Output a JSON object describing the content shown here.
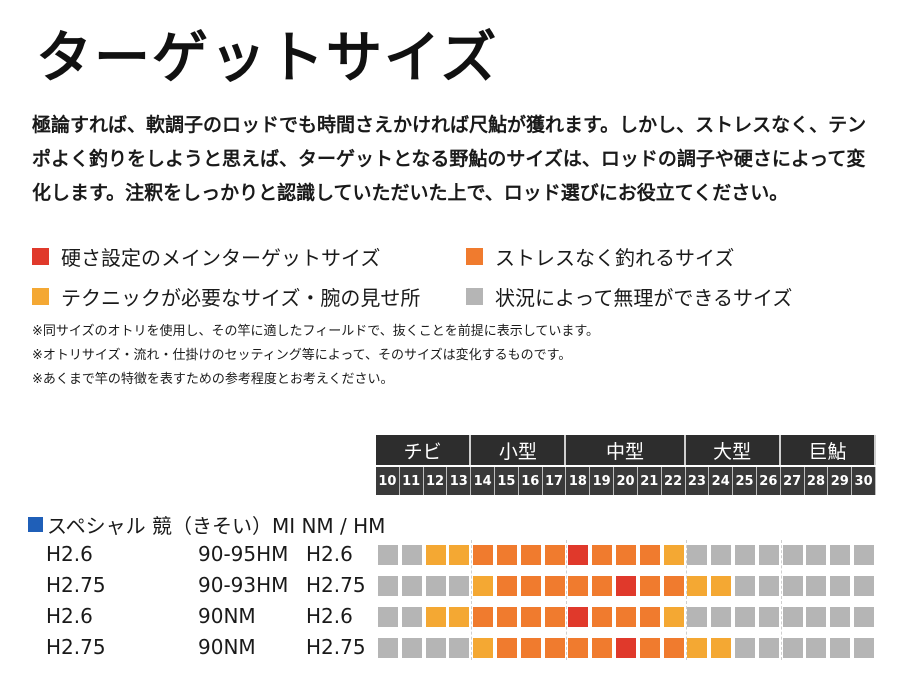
{
  "title": "ターゲットサイズ",
  "intro": [
    "極論すれば、軟調子のロッドでも時間さえかければ尺鮎が獲れます。しかし、ストレスなく、テン",
    "ポよく釣りをしようと思えば、ターゲットとなる野鮎のサイズは、ロッドの調子や硬さによって変",
    "化します。注釈をしっかりと認識していただいた上で、ロッド選びにお役立てください。"
  ],
  "legend": [
    {
      "label": "硬さ設定のメインターゲットサイズ",
      "color": "#e0392b",
      "level": 3
    },
    {
      "label": "ストレスなく釣れるサイズ",
      "color": "#f07b2e",
      "level": 2
    },
    {
      "label": "テクニックが必要なサイズ・腕の見せ所",
      "color": "#f4a833",
      "level": 1
    },
    {
      "label": "状況によって無理ができるサイズ",
      "color": "#b5b5b5",
      "level": 0
    }
  ],
  "notes": [
    "※同サイズのオトリを使用し、その竿に適したフィールドで、抜くことを前提に表示しています。",
    "※オトリサイズ・流れ・仕掛けのセッティング等によって、そのサイズは変化するものです。",
    "※あくまで竿の特徴を表すための参考程度とお考えください。"
  ],
  "chart_data": {
    "type": "heatmap",
    "size_bands": [
      {
        "label": "チビ",
        "sizes": [
          10,
          11,
          12,
          13
        ]
      },
      {
        "label": "小型",
        "sizes": [
          14,
          15,
          16,
          17
        ]
      },
      {
        "label": "中型",
        "sizes": [
          18,
          19,
          20,
          21,
          22
        ]
      },
      {
        "label": "大型",
        "sizes": [
          23,
          24,
          25,
          26
        ]
      },
      {
        "label": "巨鮎",
        "sizes": [
          27,
          28,
          29,
          30
        ]
      }
    ],
    "sizes": [
      10,
      11,
      12,
      13,
      14,
      15,
      16,
      17,
      18,
      19,
      20,
      21,
      22,
      23,
      24,
      25,
      26,
      27,
      28,
      29,
      30
    ],
    "series_title": "スペシャル 競（きそい）MI NM / HM",
    "rows": [
      {
        "name": "H2.6",
        "spec": "90-95HM",
        "name2": "H2.6",
        "levels": [
          0,
          0,
          1,
          1,
          2,
          2,
          2,
          2,
          3,
          2,
          2,
          2,
          1,
          0,
          0,
          0,
          0,
          0,
          0,
          0,
          0
        ]
      },
      {
        "name": "H2.75",
        "spec": "90-93HM",
        "name2": "H2.75",
        "levels": [
          0,
          0,
          0,
          0,
          1,
          2,
          2,
          2,
          2,
          2,
          3,
          2,
          2,
          1,
          1,
          0,
          0,
          0,
          0,
          0,
          0
        ]
      },
      {
        "name": "H2.6",
        "spec": "90NM",
        "name2": "H2.6",
        "levels": [
          0,
          0,
          1,
          1,
          2,
          2,
          2,
          2,
          3,
          2,
          2,
          2,
          1,
          0,
          0,
          0,
          0,
          0,
          0,
          0,
          0
        ]
      },
      {
        "name": "H2.75",
        "spec": "90NM",
        "name2": "H2.75",
        "levels": [
          0,
          0,
          0,
          0,
          1,
          2,
          2,
          2,
          2,
          2,
          3,
          2,
          2,
          1,
          1,
          0,
          0,
          0,
          0,
          0,
          0
        ]
      }
    ]
  }
}
